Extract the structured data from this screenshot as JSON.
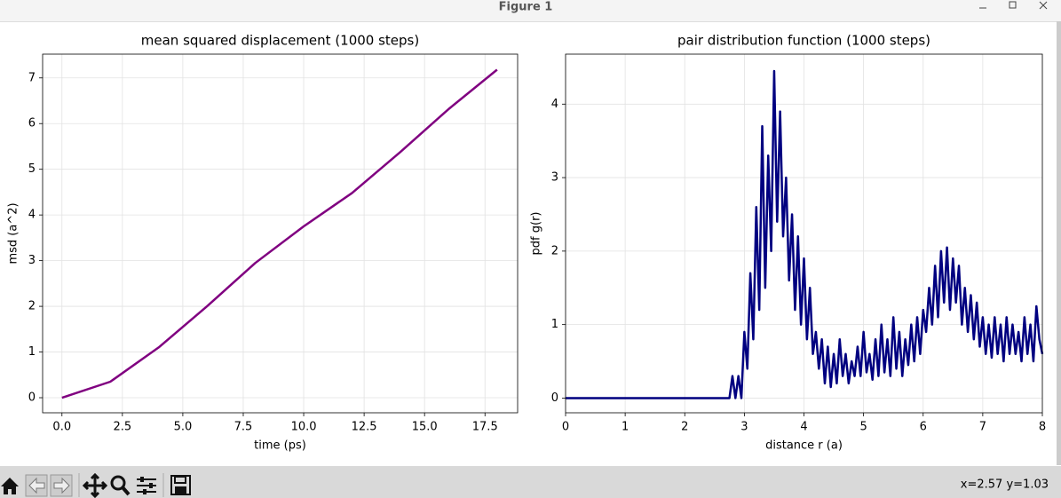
{
  "window": {
    "title": "Figure 1",
    "status": "x=2.57 y=1.03"
  },
  "chart_data": [
    {
      "type": "line",
      "title": "mean squared displacement (1000 steps)",
      "xlabel": "time (ps)",
      "ylabel": "msd (a^2)",
      "x": [
        0,
        2,
        4,
        6,
        8,
        10,
        12,
        14,
        16,
        18
      ],
      "series": [
        {
          "color": "#800080",
          "values": [
            0,
            0.35,
            1.1,
            2.0,
            2.95,
            3.75,
            4.48,
            5.38,
            6.32,
            7.18
          ]
        }
      ],
      "xlim": [
        -0.8,
        18.85
      ],
      "ylim": [
        -0.33,
        7.52
      ],
      "xticks": [
        {
          "value": 0,
          "label": "0.0"
        },
        2.5,
        {
          "value": 5,
          "label": "5.0"
        },
        7.5,
        {
          "value": 10,
          "label": "10.0"
        },
        12.5,
        {
          "value": 15,
          "label": "15.0"
        },
        17.5
      ],
      "yticks": [
        0,
        1,
        2,
        3,
        4,
        5,
        6,
        7
      ],
      "grid": true
    },
    {
      "type": "line",
      "title": "pair distribution function (1000 steps)",
      "xlabel": "distance r (a)",
      "ylabel": "pdf g(r)",
      "x": [
        0,
        2.75,
        2.8,
        2.85,
        2.9,
        2.95,
        3.0,
        3.05,
        3.1,
        3.15,
        3.2,
        3.25,
        3.3,
        3.35,
        3.4,
        3.45,
        3.5,
        3.55,
        3.6,
        3.65,
        3.7,
        3.75,
        3.8,
        3.85,
        3.9,
        3.95,
        4.0,
        4.05,
        4.1,
        4.15,
        4.2,
        4.25,
        4.3,
        4.35,
        4.4,
        4.45,
        4.5,
        4.55,
        4.6,
        4.65,
        4.7,
        4.75,
        4.8,
        4.85,
        4.9,
        4.95,
        5.0,
        5.05,
        5.1,
        5.15,
        5.2,
        5.25,
        5.3,
        5.35,
        5.4,
        5.45,
        5.5,
        5.55,
        5.6,
        5.65,
        5.7,
        5.75,
        5.8,
        5.85,
        5.9,
        5.95,
        6.0,
        6.05,
        6.1,
        6.15,
        6.2,
        6.25,
        6.3,
        6.35,
        6.4,
        6.45,
        6.5,
        6.55,
        6.6,
        6.65,
        6.7,
        6.75,
        6.8,
        6.85,
        6.9,
        6.95,
        7.0,
        7.05,
        7.1,
        7.15,
        7.2,
        7.25,
        7.3,
        7.35,
        7.4,
        7.45,
        7.5,
        7.55,
        7.6,
        7.65,
        7.7,
        7.75,
        7.8,
        7.85,
        7.9,
        7.95,
        8.0
      ],
      "series": [
        {
          "color": "#000080",
          "values": [
            0,
            0,
            0.3,
            0,
            0.3,
            0,
            0.9,
            0.4,
            1.7,
            0.8,
            2.6,
            1.2,
            3.7,
            1.5,
            3.3,
            2.0,
            4.45,
            2.4,
            3.9,
            2.2,
            3.0,
            1.6,
            2.5,
            1.2,
            2.2,
            1.0,
            1.9,
            0.8,
            1.5,
            0.6,
            0.9,
            0.4,
            0.8,
            0.2,
            0.7,
            0.15,
            0.6,
            0.2,
            0.8,
            0.3,
            0.6,
            0.2,
            0.5,
            0.3,
            0.7,
            0.3,
            0.9,
            0.35,
            0.6,
            0.25,
            0.8,
            0.3,
            1.0,
            0.35,
            0.8,
            0.3,
            1.1,
            0.4,
            0.9,
            0.3,
            0.8,
            0.45,
            1.0,
            0.5,
            1.1,
            0.6,
            1.2,
            0.9,
            1.5,
            1.0,
            1.8,
            1.1,
            2.0,
            1.3,
            2.05,
            1.2,
            1.9,
            1.3,
            1.8,
            1.0,
            1.5,
            0.9,
            1.4,
            0.8,
            1.3,
            0.7,
            1.1,
            0.6,
            1.0,
            0.55,
            1.1,
            0.6,
            1.0,
            0.5,
            1.1,
            0.6,
            1.0,
            0.6,
            0.9,
            0.5,
            1.1,
            0.6,
            1.0,
            0.5,
            1.25,
            0.8,
            0.6
          ]
        }
      ],
      "xlim": [
        0,
        8
      ],
      "ylim": [
        -0.2,
        4.68
      ],
      "xticks": [
        0,
        1,
        2,
        3,
        4,
        5,
        6,
        7,
        8
      ],
      "yticks": [
        0,
        1,
        2,
        3,
        4
      ],
      "grid": true
    }
  ]
}
